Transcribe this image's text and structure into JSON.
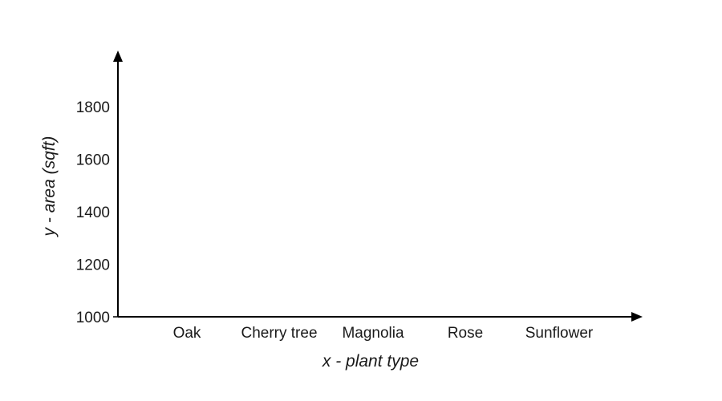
{
  "chart_data": {
    "type": "bar",
    "title": "",
    "xlabel": "x - plant type",
    "ylabel": "y - area (sqft)",
    "categories": [
      "Oak",
      "Cherry tree",
      "Magnolia",
      "Rose",
      "Sunflower"
    ],
    "yticks": [
      1000,
      1200,
      1400,
      1600,
      1800
    ],
    "ylim": [
      1000,
      2000
    ],
    "grid": false,
    "legend": "none",
    "series": []
  }
}
